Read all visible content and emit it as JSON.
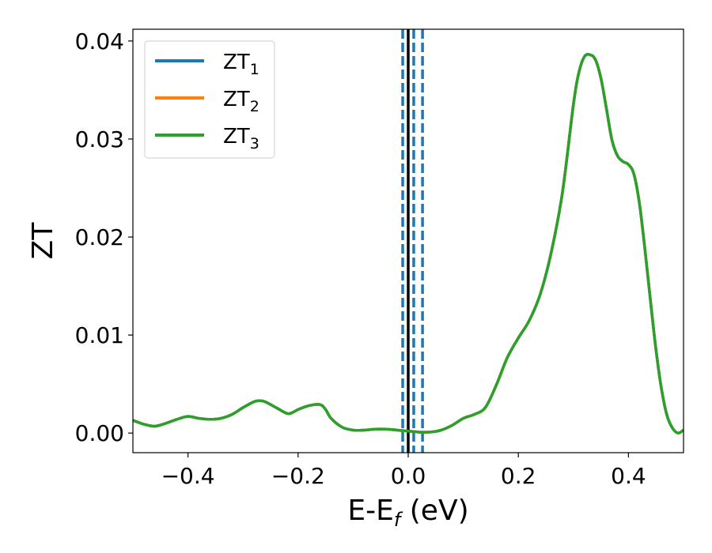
{
  "chart_data": {
    "type": "line",
    "xlabel": "E-E",
    "xlabel_sub": "f",
    "xlabel_unit": " (eV)",
    "ylabel": "ZT",
    "xlim": [
      -0.5,
      0.5
    ],
    "ylim": [
      -0.002,
      0.0412
    ],
    "x_ticks": [
      -0.4,
      -0.2,
      0.0,
      0.2,
      0.4
    ],
    "x_tick_labels": [
      "−0.4",
      "−0.2",
      "0.0",
      "0.2",
      "0.4"
    ],
    "y_ticks": [
      0.0,
      0.01,
      0.02,
      0.03,
      0.04
    ],
    "y_tick_labels": [
      "0.00",
      "0.01",
      "0.02",
      "0.03",
      "0.04"
    ],
    "grid": false,
    "legend_position": "top-left",
    "vertical_lines": [
      {
        "x": 0.0,
        "style": "solid",
        "color": "#000000"
      },
      {
        "x": -0.01,
        "style": "dashed",
        "color": "#1f77b4"
      },
      {
        "x": 0.01,
        "style": "dashed",
        "color": "#1f77b4"
      },
      {
        "x": 0.026,
        "style": "dashed",
        "color": "#1f77b4"
      }
    ],
    "x": [
      -0.5,
      -0.48,
      -0.46,
      -0.44,
      -0.42,
      -0.4,
      -0.38,
      -0.36,
      -0.34,
      -0.32,
      -0.3,
      -0.28,
      -0.27,
      -0.26,
      -0.24,
      -0.22,
      -0.21,
      -0.2,
      -0.18,
      -0.16,
      -0.15,
      -0.14,
      -0.12,
      -0.1,
      -0.08,
      -0.06,
      -0.04,
      -0.02,
      0.0,
      0.02,
      0.04,
      0.06,
      0.08,
      0.1,
      0.12,
      0.14,
      0.16,
      0.18,
      0.2,
      0.22,
      0.24,
      0.26,
      0.28,
      0.3,
      0.31,
      0.32,
      0.33,
      0.34,
      0.35,
      0.36,
      0.37,
      0.38,
      0.39,
      0.4,
      0.41,
      0.42,
      0.43,
      0.44,
      0.45,
      0.46,
      0.47,
      0.48,
      0.49,
      0.5
    ],
    "series": [
      {
        "name": "ZT",
        "sub": "1",
        "color": "#1f77b4",
        "values": [
          0.0013,
          0.0009,
          0.0007,
          0.001,
          0.0014,
          0.0017,
          0.0015,
          0.0014,
          0.0015,
          0.0019,
          0.0026,
          0.0032,
          0.0033,
          0.0032,
          0.0026,
          0.002,
          0.0021,
          0.0024,
          0.0028,
          0.0029,
          0.0024,
          0.0015,
          0.0006,
          0.0003,
          0.0003,
          0.0004,
          0.0004,
          0.0003,
          0.0002,
          0.0001,
          0.0001,
          0.0003,
          0.0008,
          0.0015,
          0.0019,
          0.0026,
          0.0049,
          0.0077,
          0.0097,
          0.0115,
          0.0142,
          0.0185,
          0.0245,
          0.0335,
          0.0368,
          0.0384,
          0.0386,
          0.0381,
          0.0362,
          0.0331,
          0.0299,
          0.0283,
          0.0277,
          0.0274,
          0.0264,
          0.0234,
          0.0187,
          0.0135,
          0.0085,
          0.0045,
          0.0018,
          0.0005,
          0.0,
          0.0003
        ]
      },
      {
        "name": "ZT",
        "sub": "2",
        "color": "#ff7f0e",
        "values": [
          0.0013,
          0.0009,
          0.0007,
          0.001,
          0.0014,
          0.0017,
          0.0015,
          0.0014,
          0.0015,
          0.0019,
          0.0026,
          0.0032,
          0.0033,
          0.0032,
          0.0026,
          0.002,
          0.0021,
          0.0024,
          0.0028,
          0.0029,
          0.0024,
          0.0015,
          0.0006,
          0.0003,
          0.0003,
          0.0004,
          0.0004,
          0.0003,
          0.0002,
          0.0001,
          0.0001,
          0.0003,
          0.0008,
          0.0015,
          0.0019,
          0.0026,
          0.0049,
          0.0077,
          0.0097,
          0.0115,
          0.0142,
          0.0185,
          0.0245,
          0.0335,
          0.0368,
          0.0384,
          0.0386,
          0.0381,
          0.0362,
          0.0331,
          0.0299,
          0.0283,
          0.0277,
          0.0274,
          0.0264,
          0.0234,
          0.0187,
          0.0135,
          0.0085,
          0.0045,
          0.0018,
          0.0005,
          0.0,
          0.0003
        ]
      },
      {
        "name": "ZT",
        "sub": "3",
        "color": "#2ca02c",
        "values": [
          0.0013,
          0.0009,
          0.0007,
          0.001,
          0.0014,
          0.0017,
          0.0015,
          0.0014,
          0.0015,
          0.0019,
          0.0026,
          0.0032,
          0.0033,
          0.0032,
          0.0026,
          0.002,
          0.0021,
          0.0024,
          0.0028,
          0.0029,
          0.0024,
          0.0015,
          0.0006,
          0.0003,
          0.0003,
          0.0004,
          0.0004,
          0.0003,
          0.0002,
          0.0001,
          0.0001,
          0.0003,
          0.0008,
          0.0015,
          0.0019,
          0.0026,
          0.0049,
          0.0077,
          0.0097,
          0.0115,
          0.0142,
          0.0185,
          0.0245,
          0.0335,
          0.0368,
          0.0384,
          0.0386,
          0.0381,
          0.0362,
          0.0331,
          0.0299,
          0.0283,
          0.0277,
          0.0274,
          0.0264,
          0.0234,
          0.0187,
          0.0135,
          0.0085,
          0.0045,
          0.0018,
          0.0005,
          0.0,
          0.0003
        ]
      }
    ]
  }
}
